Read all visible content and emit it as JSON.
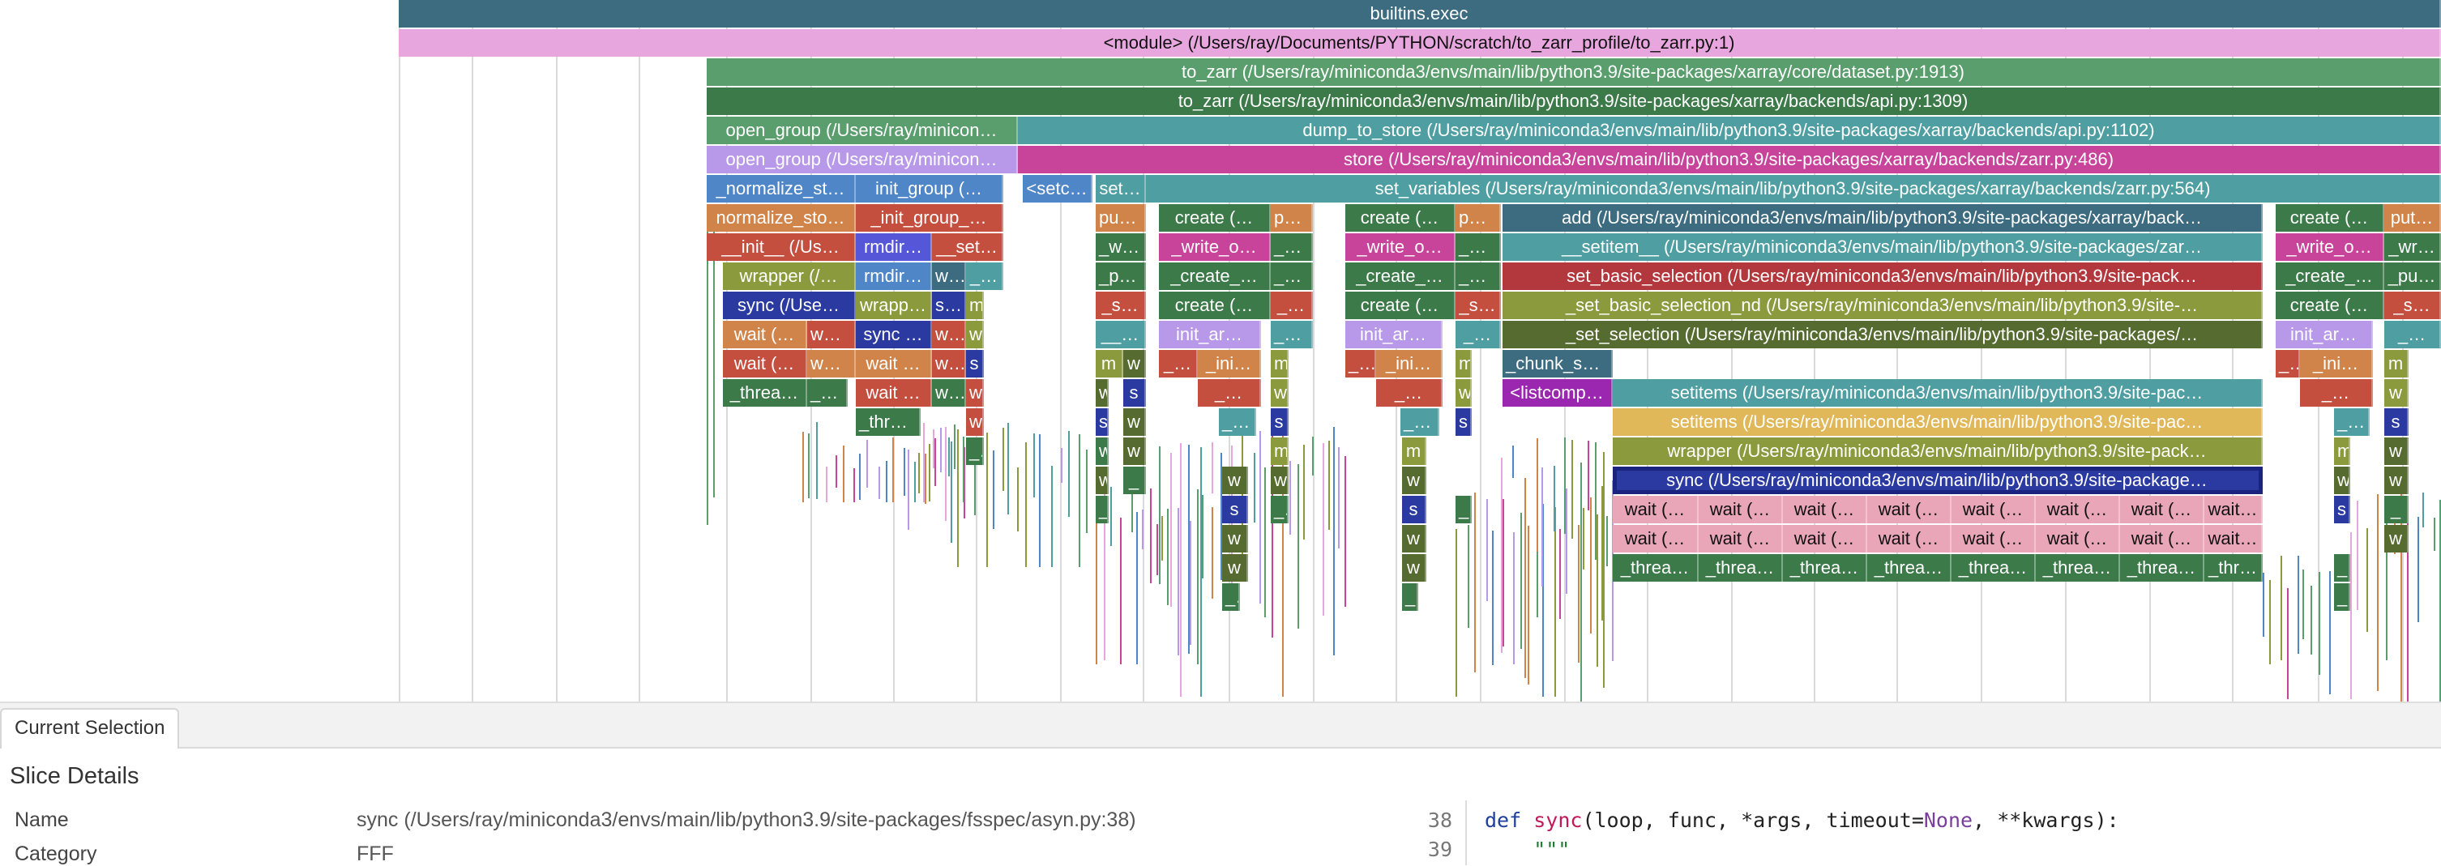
{
  "colors": {
    "teal_dark": "#3d6b80",
    "pink_light": "#e8a6de",
    "green_mid": "#5a9e6e",
    "green_dark": "#3d7a4a",
    "teal_mid": "#4f9ea1",
    "magenta": "#c8439a",
    "lavender": "#b898e8",
    "blue_mid": "#4e86c7",
    "orange": "#d0844a",
    "red": "#c44f3e",
    "red_dark": "#b3383d",
    "olive": "#8c9a3e",
    "navy": "#2b3aa0",
    "selected_outline": "#1a237e"
  },
  "flame": {
    "rows": [
      [
        {
          "label": "builtins.exec",
          "color": "#3d6b80"
        }
      ],
      [
        {
          "label": "<module> (/Users/ray/Documents/PYTHON/scratch/to_zarr_profile/to_zarr.py:1)",
          "color": "#e8a6de",
          "dark": true
        }
      ],
      [
        {
          "label": "to_zarr (/Users/ray/miniconda3/envs/main/lib/python3.9/site-packages/xarray/core/dataset.py:1913)",
          "color": "#5a9e6e"
        }
      ],
      [
        {
          "label": "to_zarr (/Users/ray/miniconda3/envs/main/lib/python3.9/site-packages/xarray/backends/api.py:1309)",
          "color": "#3d7a4a"
        }
      ],
      [
        {
          "label": "open_group (/Users/ray/minicon…",
          "color": "#5a9e6e"
        },
        {
          "label": "dump_to_store (/Users/ray/miniconda3/envs/main/lib/python3.9/site-packages/xarray/backends/api.py:1102)",
          "color": "#4f9ea1"
        }
      ],
      [
        {
          "label": "open_group (/Users/ray/minicon…",
          "color": "#b898e8"
        },
        {
          "label": "store (/Users/ray/miniconda3/envs/main/lib/python3.9/site-packages/xarray/backends/zarr.py:486)",
          "color": "#c8439a"
        }
      ],
      [
        {
          "label": "_normalize_st…",
          "color": "#4e86c7"
        },
        {
          "label": "init_group (…",
          "color": "#4e86c7"
        },
        {
          "label": "<setc…",
          "color": "#4e86c7"
        },
        {
          "label": "set…",
          "color": "#4f9ea1"
        },
        {
          "label": "set_variables (/Users/ray/miniconda3/envs/main/lib/python3.9/site-packages/xarray/backends/zarr.py:564)",
          "color": "#4f9ea1"
        }
      ],
      [
        {
          "label": "normalize_sto…",
          "color": "#d0844a"
        },
        {
          "label": "_init_group_…",
          "color": "#c44f3e"
        },
        {
          "label": "put…",
          "color": "#d0844a"
        },
        {
          "label": "create (…",
          "color": "#3d7a4a"
        },
        {
          "label": "pu…",
          "color": "#d0844a"
        },
        {
          "label": "create (…",
          "color": "#3d7a4a"
        },
        {
          "label": "put…",
          "color": "#d0844a"
        },
        {
          "label": "add (/Users/ray/miniconda3/envs/main/lib/python3.9/site-packages/xarray/back…",
          "color": "#3d6b80"
        },
        {
          "label": "create (…",
          "color": "#3d7a4a"
        },
        {
          "label": "put…",
          "color": "#d0844a"
        }
      ],
      [
        {
          "label": "__init__ (/Us…",
          "color": "#c44f3e"
        },
        {
          "label": "rmdir…",
          "color": "#5557d8"
        },
        {
          "label": "__set…",
          "color": "#c44f3e"
        },
        {
          "label": "_wr…",
          "color": "#3d7a4a"
        },
        {
          "label": "_write_o…",
          "color": "#c8439a"
        },
        {
          "label": "_w…",
          "color": "#3d7a4a"
        },
        {
          "label": "_write_o…",
          "color": "#c8439a"
        },
        {
          "label": "_wr…",
          "color": "#3d7a4a"
        },
        {
          "label": "__setitem__ (/Users/ray/miniconda3/envs/main/lib/python3.9/site-packages/zar…",
          "color": "#4f9ea1"
        },
        {
          "label": "_write_o…",
          "color": "#c8439a"
        },
        {
          "label": "_wr…",
          "color": "#3d7a4a"
        }
      ],
      [
        {
          "label": "wrapper (/…",
          "color": "#8c9a3e"
        },
        {
          "label": "rmdir…",
          "color": "#4e86c7"
        },
        {
          "label": "w…",
          "color": "#3d6b80"
        },
        {
          "label": "_…",
          "color": "#4f9ea1"
        },
        {
          "label": "_pu…",
          "color": "#3d7a4a"
        },
        {
          "label": "_create_…",
          "color": "#3d7a4a"
        },
        {
          "label": "_p…",
          "color": "#3d7a4a"
        },
        {
          "label": "_create_…",
          "color": "#3d7a4a"
        },
        {
          "label": "_pu…",
          "color": "#3d7a4a"
        },
        {
          "label": "set_basic_selection (/Users/ray/miniconda3/envs/main/lib/python3.9/site-pack…",
          "color": "#b3383d"
        },
        {
          "label": "_create_…",
          "color": "#3d7a4a"
        },
        {
          "label": "_pu…",
          "color": "#3d7a4a"
        }
      ],
      [
        {
          "label": "sync (/Use…",
          "color": "#2b3aa0"
        },
        {
          "label": "wrapp…",
          "color": "#8c9a3e"
        },
        {
          "label": "s…",
          "color": "#2b3aa0"
        },
        {
          "label": "m",
          "color": "#8c9a3e"
        },
        {
          "label": "_s…",
          "color": "#c44f3e"
        },
        {
          "label": "create (…",
          "color": "#3d7a4a"
        },
        {
          "label": "_…",
          "color": "#c44f3e"
        },
        {
          "label": "create (…",
          "color": "#3d7a4a"
        },
        {
          "label": "_s…",
          "color": "#c44f3e"
        },
        {
          "label": "_set_basic_selection_nd (/Users/ray/miniconda3/envs/main/lib/python3.9/site-…",
          "color": "#8c9a3e"
        },
        {
          "label": "create (…",
          "color": "#3d7a4a"
        },
        {
          "label": "_s…",
          "color": "#c44f3e"
        }
      ],
      [
        {
          "label": "wait (…",
          "color": "#d0844a"
        },
        {
          "label": "wa…",
          "color": "#c44f3e"
        },
        {
          "label": "sync …",
          "color": "#2b3aa0"
        },
        {
          "label": "w…",
          "color": "#c44f3e"
        },
        {
          "label": "w",
          "color": "#8c9a3e"
        },
        {
          "label": "__…",
          "color": "#4f9ea1"
        },
        {
          "label": "init_ar…",
          "color": "#b898e8"
        },
        {
          "label": "__…",
          "color": "#4f9ea1"
        },
        {
          "label": "init_ar…",
          "color": "#b898e8"
        },
        {
          "label": "_…",
          "color": "#4f9ea1"
        },
        {
          "label": "_set_selection (/Users/ray/miniconda3/envs/main/lib/python3.9/site-packages/…",
          "color": "#556b2f"
        },
        {
          "label": "init_ar…",
          "color": "#b898e8"
        },
        {
          "label": "_…",
          "color": "#4f9ea1"
        }
      ],
      [
        {
          "label": "wait (…",
          "color": "#c44f3e"
        },
        {
          "label": "wa…",
          "color": "#d0844a"
        },
        {
          "label": "wait …",
          "color": "#d0844a"
        },
        {
          "label": "w…",
          "color": "#c44f3e"
        },
        {
          "label": "s",
          "color": "#2b3aa0"
        },
        {
          "label": "m",
          "color": "#8c9a3e"
        },
        {
          "label": "w",
          "color": "#556b2f"
        },
        {
          "label": "_…",
          "color": "#c44f3e"
        },
        {
          "label": "_ini…",
          "color": "#d0844a"
        },
        {
          "label": "m",
          "color": "#8c9a3e"
        },
        {
          "label": "_…",
          "color": "#c44f3e"
        },
        {
          "label": "_ini…",
          "color": "#d0844a"
        },
        {
          "label": "m",
          "color": "#8c9a3e"
        },
        {
          "label": "_chunk_setitems (/Users/ray/miniconda3/envs/main/lib/python3.9/site-packages…",
          "color": "#3d6b80"
        },
        {
          "label": "_…",
          "color": "#c44f3e"
        },
        {
          "label": "_ini…",
          "color": "#d0844a"
        },
        {
          "label": "m",
          "color": "#8c9a3e"
        }
      ],
      [
        {
          "label": "_threa…",
          "color": "#3d7a4a"
        },
        {
          "label": "_t…",
          "color": "#3d7a4a"
        },
        {
          "label": "wait …",
          "color": "#c44f3e"
        },
        {
          "label": "w…",
          "color": "#3d7a4a"
        },
        {
          "label": "w",
          "color": "#c44f3e"
        },
        {
          "label": "w",
          "color": "#556b2f"
        },
        {
          "label": "s",
          "color": "#2b3aa0"
        },
        {
          "label": "_…",
          "color": "#c44f3e"
        },
        {
          "label": "w",
          "color": "#8c9a3e"
        },
        {
          "label": "_…",
          "color": "#c44f3e"
        },
        {
          "label": "w",
          "color": "#8c9a3e"
        },
        {
          "label": "<listcomp…",
          "color": "#9b27b0"
        },
        {
          "label": "setitems (/Users/ray/miniconda3/envs/main/lib/python3.9/site-pac…",
          "color": "#4f9ea1"
        },
        {
          "label": "_…",
          "color": "#c44f3e"
        },
        {
          "label": "w",
          "color": "#8c9a3e"
        }
      ],
      [
        {
          "label": "_thre…",
          "color": "#3d7a4a"
        },
        {
          "label": "w",
          "color": "#c44f3e"
        },
        {
          "label": "s",
          "color": "#2b3aa0"
        },
        {
          "label": "w",
          "color": "#556b2f"
        },
        {
          "label": "__…",
          "color": "#4f9ea1"
        },
        {
          "label": "s",
          "color": "#2b3aa0"
        },
        {
          "label": "__…",
          "color": "#4f9ea1"
        },
        {
          "label": "s",
          "color": "#2b3aa0"
        },
        {
          "label": "setitems (/Users/ray/miniconda3/envs/main/lib/python3.9/site-pac…",
          "color": "#e0b85a"
        },
        {
          "label": "__…",
          "color": "#4f9ea1"
        },
        {
          "label": "s",
          "color": "#2b3aa0"
        }
      ],
      [
        {
          "label": "_",
          "color": "#3d7a4a"
        },
        {
          "label": "w",
          "color": "#3d7a4a"
        },
        {
          "label": "w",
          "color": "#556b2f"
        },
        {
          "label": "m",
          "color": "#8c9a3e"
        },
        {
          "label": "m",
          "color": "#8c9a3e"
        },
        {
          "label": "wrapper (/Users/ray/miniconda3/envs/main/lib/python3.9/site-pack…",
          "color": "#8c9a3e"
        },
        {
          "label": "m",
          "color": "#8c9a3e"
        },
        {
          "label": "w",
          "color": "#556b2f"
        }
      ],
      [
        {
          "label": "w",
          "color": "#556b2f"
        },
        {
          "label": "_",
          "color": "#3d7a4a"
        },
        {
          "label": "w",
          "color": "#556b2f"
        },
        {
          "label": "w",
          "color": "#556b2f"
        },
        {
          "label": "w",
          "color": "#556b2f"
        },
        {
          "label": "sync (/Users/ray/miniconda3/envs/main/lib/python3.9/site-package…",
          "color": "#2b3aa0",
          "selected": true
        },
        {
          "label": "w",
          "color": "#556b2f"
        },
        {
          "label": "w",
          "color": "#556b2f"
        }
      ],
      [
        {
          "label": "_",
          "color": "#3d7a4a"
        },
        {
          "label": "s",
          "color": "#2b3aa0"
        },
        {
          "label": "_",
          "color": "#3d7a4a"
        },
        {
          "label": "s",
          "color": "#2b3aa0"
        },
        {
          "label": "_",
          "color": "#3d7a4a"
        },
        {
          "label": "wait (…",
          "color": "#e8a6b8",
          "dark": true
        },
        {
          "label": "wait (…",
          "color": "#e8a6b8",
          "dark": true
        },
        {
          "label": "wait (…",
          "color": "#e8a6b8",
          "dark": true
        },
        {
          "label": "wait (…",
          "color": "#e8a6b8",
          "dark": true
        },
        {
          "label": "wait (…",
          "color": "#e8a6b8",
          "dark": true
        },
        {
          "label": "wait (…",
          "color": "#e8a6b8",
          "dark": true
        },
        {
          "label": "wait (…",
          "color": "#e8a6b8",
          "dark": true
        },
        {
          "label": "wait…",
          "color": "#e8a6b8",
          "dark": true
        },
        {
          "label": "s",
          "color": "#2b3aa0"
        },
        {
          "label": "_",
          "color": "#3d7a4a"
        }
      ],
      [
        {
          "label": "w",
          "color": "#556b2f"
        },
        {
          "label": "w",
          "color": "#556b2f"
        },
        {
          "label": "wait (…",
          "color": "#e8a6b8",
          "dark": true
        },
        {
          "label": "wait (…",
          "color": "#e8a6b8",
          "dark": true
        },
        {
          "label": "wait (…",
          "color": "#e8a6b8",
          "dark": true
        },
        {
          "label": "wait (…",
          "color": "#e8a6b8",
          "dark": true
        },
        {
          "label": "wait (…",
          "color": "#e8a6b8",
          "dark": true
        },
        {
          "label": "wait (…",
          "color": "#e8a6b8",
          "dark": true
        },
        {
          "label": "wait (…",
          "color": "#e8a6b8",
          "dark": true
        },
        {
          "label": "wait…",
          "color": "#e8a6b8",
          "dark": true
        },
        {
          "label": "w",
          "color": "#556b2f"
        }
      ],
      [
        {
          "label": "w",
          "color": "#556b2f"
        },
        {
          "label": "w",
          "color": "#556b2f"
        },
        {
          "label": "_threa…",
          "color": "#3d7a4a"
        },
        {
          "label": "_threa…",
          "color": "#3d7a4a"
        },
        {
          "label": "_threa…",
          "color": "#3d7a4a"
        },
        {
          "label": "_threa…",
          "color": "#3d7a4a"
        },
        {
          "label": "_threa…",
          "color": "#3d7a4a"
        },
        {
          "label": "_threa…",
          "color": "#3d7a4a"
        },
        {
          "label": "_threa…",
          "color": "#3d7a4a"
        },
        {
          "label": "_thr…",
          "color": "#3d7a4a"
        },
        {
          "label": "_",
          "color": "#3d7a4a"
        }
      ],
      [
        {
          "label": "_",
          "color": "#3d7a4a"
        },
        {
          "label": "_",
          "color": "#3d7a4a"
        },
        {
          "label": "_",
          "color": "#3d7a4a"
        }
      ]
    ]
  },
  "panel": {
    "tab_label": "Current Selection",
    "details_title": "Slice Details",
    "fields": [
      {
        "label": "Name",
        "value": "sync (/Users/ray/miniconda3/envs/main/lib/python3.9/site-packages/fsspec/asyn.py:38)"
      },
      {
        "label": "Category",
        "value": "FFF"
      }
    ],
    "code": {
      "line_numbers": [
        "38",
        "39"
      ],
      "lines": [
        [
          {
            "t": "def ",
            "c": "kw"
          },
          {
            "t": "sync",
            "c": "fn"
          },
          {
            "t": "(loop, func, *args, timeout=",
            "c": ""
          },
          {
            "t": "None",
            "c": "cst"
          },
          {
            "t": ", **kwargs):",
            "c": ""
          }
        ],
        [
          {
            "t": "    \"\"\"",
            "c": "str"
          }
        ]
      ]
    }
  }
}
